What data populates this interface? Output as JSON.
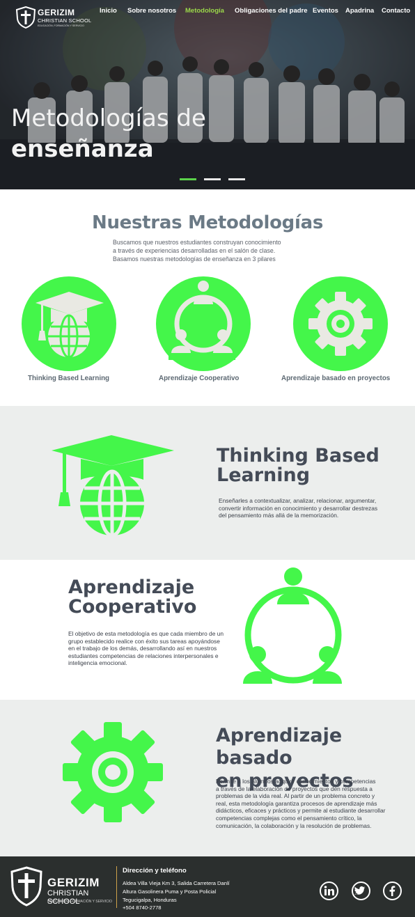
{
  "header": {
    "brand": "GERIZIM",
    "brand_sub": "CHRISTIAN SCHOOL",
    "brand_tag": "EDUCACIÓN, FORMACIÓN Y SERVICIO",
    "nav": [
      {
        "label": "Inicio",
        "active": false
      },
      {
        "label": "Sobre nosotros",
        "active": false
      },
      {
        "label": "Metodología",
        "active": true
      },
      {
        "label": "Obligaciones del padre",
        "active": false
      },
      {
        "label": "Eventos",
        "active": false
      },
      {
        "label": "Apadrina",
        "active": false
      },
      {
        "label": "Contacto",
        "active": false
      }
    ]
  },
  "hero": {
    "title_line1": "Metodologías de",
    "title_line2": "enseñanza",
    "slides": 3,
    "active_slide": 1
  },
  "intro": {
    "title": "Nuestras Metodologías",
    "text_lines": [
      "Buscamos que nuestros estudiantes construyan conocimiento",
      "a través de experiencias desarrolladas en el salón de clase.",
      "Basamos nuestras metodologías de enseñanza en 3 pilares"
    ],
    "pillars": [
      {
        "label": "Thinking Based Learning",
        "icon": "graduation-globe-icon"
      },
      {
        "label": "Aprendizaje Cooperativo",
        "icon": "team-circle-icon"
      },
      {
        "label": "Aprendizaje basado en proyectos",
        "icon": "gear-icon"
      }
    ]
  },
  "features": {
    "thinking": {
      "title_line1": "Thinking Based",
      "title_line2": "Learning",
      "text_lines": [
        "Enseñarles a contextualizar, analizar, relacionar, argumentar,",
        "convertir información en conocimiento y desarrollar destrezas",
        "del pensamiento más allá de la memorización."
      ]
    },
    "cooperativo": {
      "title_line1": "Aprendizaje",
      "title_line2": "Cooperativo",
      "text_lines": [
        "El objetivo de esta metodología es que cada miembro de un",
        "grupo establecido realice con éxito sus tareas apoyándose",
        "en el trabajo de los demás, desarrollando así en nuestros",
        "estudiantes competencias de relaciones interpersonales e",
        "inteligencia emocional."
      ]
    },
    "proyectos": {
      "title_line1": "Aprendizaje basado",
      "title_line2": "en proyectos",
      "text_lines": [
        "Permite a los alumnos adquirir conocimientos y competencias",
        "a través de la elaboración de proyectos que den respuesta a",
        "problemas de la vida real. Al partir de un problema concreto y",
        "real, esta metodología garantiza procesos de aprendizaje más",
        "didácticos, eficaces y prácticos y permite al estudiante desarrollar",
        "competencias complejas como el pensamiento crítico, la",
        "comunicación, la colaboración y la resolución de problemas."
      ]
    }
  },
  "footer": {
    "brand": "GERIZIM",
    "brand_sub": "CHRISTIAN SCHOOL",
    "brand_tag": "EDUCACIÓN, FORMACIÓN Y SERVICIO",
    "heading": "Dirección y teléfono",
    "lines": [
      "Aldea Villa Vieja Km 3, Salida Carretera Danlí",
      "Altura Gasolinera Puma y Posta Policial",
      "Tegucigalpa, Honduras",
      "+504 8740-2778"
    ],
    "social": [
      "linkedin-icon",
      "twitter-icon",
      "facebook-icon"
    ]
  },
  "colors": {
    "accent_green": "#44f64a",
    "nav_active": "#9bd84a",
    "footer_bg": "#2b2f2e",
    "gray_block": "#eceeed"
  }
}
